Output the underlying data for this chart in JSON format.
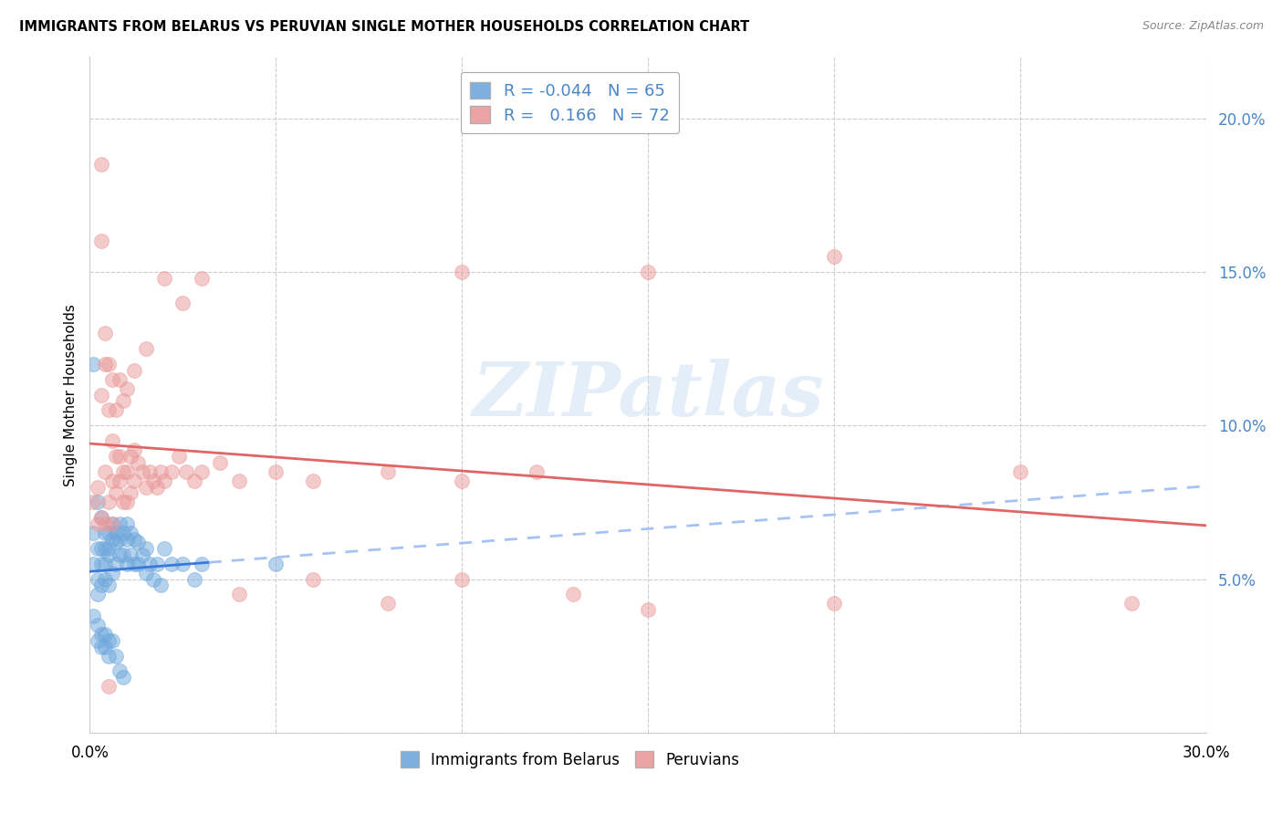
{
  "title": "IMMIGRANTS FROM BELARUS VS PERUVIAN SINGLE MOTHER HOUSEHOLDS CORRELATION CHART",
  "source": "Source: ZipAtlas.com",
  "ylabel": "Single Mother Households",
  "xlim": [
    0.0,
    0.3
  ],
  "ylim": [
    0.0,
    0.22
  ],
  "legend_r_blue": "-0.044",
  "legend_n_blue": "65",
  "legend_r_pink": "0.166",
  "legend_n_pink": "72",
  "blue_color": "#6fa8dc",
  "pink_color": "#ea9999",
  "blue_line_color": "#3c78d8",
  "pink_line_color": "#e06666",
  "blue_dash_color": "#a4c2f4",
  "watermark_text": "ZIPatlas",
  "background_color": "#ffffff",
  "grid_color": "#cccccc",
  "tick_color": "#4a86c8",
  "blue_scatter_x": [
    0.001,
    0.001,
    0.001,
    0.002,
    0.002,
    0.002,
    0.002,
    0.003,
    0.003,
    0.003,
    0.003,
    0.004,
    0.004,
    0.004,
    0.004,
    0.005,
    0.005,
    0.005,
    0.005,
    0.006,
    0.006,
    0.006,
    0.007,
    0.007,
    0.007,
    0.008,
    0.008,
    0.008,
    0.009,
    0.009,
    0.01,
    0.01,
    0.01,
    0.011,
    0.011,
    0.012,
    0.012,
    0.013,
    0.013,
    0.014,
    0.015,
    0.015,
    0.016,
    0.017,
    0.018,
    0.019,
    0.02,
    0.022,
    0.025,
    0.028,
    0.001,
    0.002,
    0.002,
    0.003,
    0.003,
    0.004,
    0.004,
    0.005,
    0.005,
    0.006,
    0.007,
    0.008,
    0.009,
    0.03,
    0.05
  ],
  "blue_scatter_y": [
    0.12,
    0.065,
    0.055,
    0.075,
    0.06,
    0.05,
    0.045,
    0.07,
    0.06,
    0.055,
    0.048,
    0.065,
    0.06,
    0.055,
    0.05,
    0.065,
    0.06,
    0.058,
    0.048,
    0.068,
    0.063,
    0.052,
    0.065,
    0.062,
    0.055,
    0.068,
    0.063,
    0.058,
    0.065,
    0.058,
    0.068,
    0.063,
    0.055,
    0.065,
    0.058,
    0.063,
    0.055,
    0.062,
    0.055,
    0.058,
    0.06,
    0.052,
    0.055,
    0.05,
    0.055,
    0.048,
    0.06,
    0.055,
    0.055,
    0.05,
    0.038,
    0.035,
    0.03,
    0.032,
    0.028,
    0.032,
    0.028,
    0.03,
    0.025,
    0.03,
    0.025,
    0.02,
    0.018,
    0.055,
    0.055
  ],
  "pink_scatter_x": [
    0.001,
    0.002,
    0.002,
    0.003,
    0.003,
    0.003,
    0.004,
    0.004,
    0.004,
    0.005,
    0.005,
    0.006,
    0.006,
    0.006,
    0.007,
    0.007,
    0.008,
    0.008,
    0.009,
    0.009,
    0.01,
    0.01,
    0.011,
    0.011,
    0.012,
    0.012,
    0.013,
    0.014,
    0.015,
    0.016,
    0.017,
    0.018,
    0.019,
    0.02,
    0.022,
    0.024,
    0.026,
    0.028,
    0.03,
    0.035,
    0.04,
    0.05,
    0.06,
    0.08,
    0.1,
    0.12,
    0.15,
    0.2,
    0.25,
    0.28,
    0.003,
    0.004,
    0.005,
    0.006,
    0.007,
    0.008,
    0.009,
    0.01,
    0.012,
    0.015,
    0.02,
    0.025,
    0.03,
    0.04,
    0.06,
    0.08,
    0.1,
    0.13,
    0.15,
    0.2,
    0.005,
    0.1
  ],
  "pink_scatter_y": [
    0.075,
    0.08,
    0.068,
    0.185,
    0.16,
    0.07,
    0.13,
    0.085,
    0.068,
    0.12,
    0.075,
    0.095,
    0.082,
    0.068,
    0.09,
    0.078,
    0.09,
    0.082,
    0.085,
    0.075,
    0.085,
    0.075,
    0.09,
    0.078,
    0.092,
    0.082,
    0.088,
    0.085,
    0.08,
    0.085,
    0.082,
    0.08,
    0.085,
    0.082,
    0.085,
    0.09,
    0.085,
    0.082,
    0.085,
    0.088,
    0.082,
    0.085,
    0.082,
    0.085,
    0.082,
    0.085,
    0.15,
    0.155,
    0.085,
    0.042,
    0.11,
    0.12,
    0.105,
    0.115,
    0.105,
    0.115,
    0.108,
    0.112,
    0.118,
    0.125,
    0.148,
    0.14,
    0.148,
    0.045,
    0.05,
    0.042,
    0.05,
    0.045,
    0.04,
    0.042,
    0.015,
    0.15
  ]
}
